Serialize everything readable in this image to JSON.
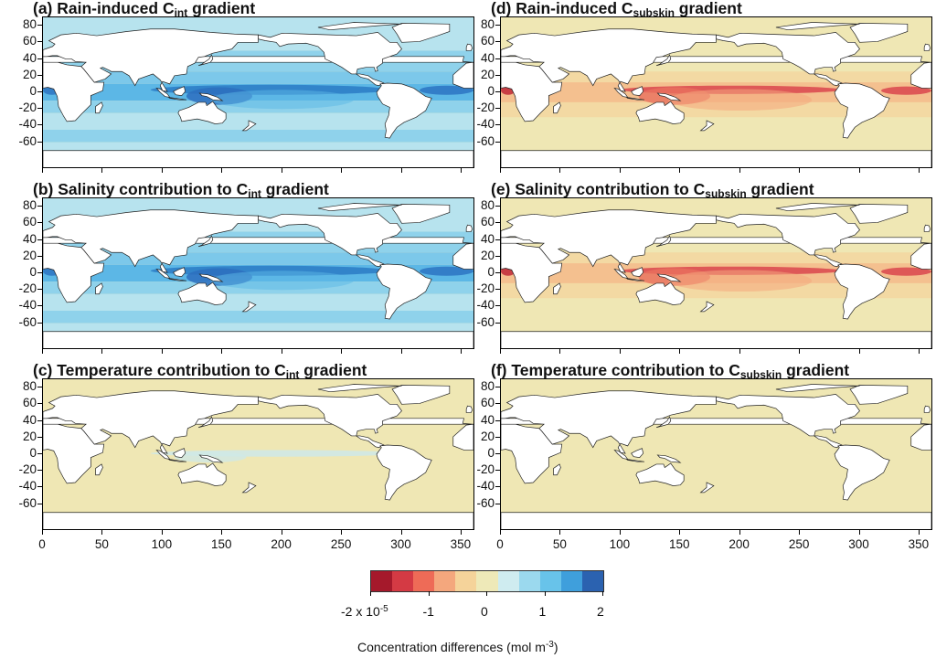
{
  "panels": [
    {
      "letter": "(a)",
      "prefix": "Rain-induced C",
      "sub": "int",
      "suffix": " gradient",
      "style": "blue"
    },
    {
      "letter": "(b)",
      "prefix": "Salinity contribution to C",
      "sub": "int",
      "suffix": " gradient",
      "style": "blue"
    },
    {
      "letter": "(c)",
      "prefix": "Temperature contribution to C",
      "sub": "int",
      "suffix": " gradient",
      "style": "flat-light"
    },
    {
      "letter": "(d)",
      "prefix": "Rain-induced C",
      "sub": "subskin",
      "suffix": " gradient",
      "style": "red"
    },
    {
      "letter": "(e)",
      "prefix": "Salinity contribution to C",
      "sub": "subskin",
      "suffix": " gradient",
      "style": "red"
    },
    {
      "letter": "(f)",
      "prefix": "Temperature contribution to C",
      "sub": "subskin",
      "suffix": " gradient",
      "style": "flat"
    }
  ],
  "y_ticks": [
    "80",
    "60",
    "40",
    "20",
    "0",
    "-20",
    "-40",
    "-60"
  ],
  "x_ticks": [
    "0",
    "50",
    "100",
    "150",
    "200",
    "250",
    "300",
    "350"
  ],
  "colorbar": {
    "colors": [
      "#a5192b",
      "#d43a44",
      "#ee6b57",
      "#f4a77d",
      "#f5d39a",
      "#eee9b8",
      "#cfecf0",
      "#9bd9ee",
      "#68c3ea",
      "#3f9fdc",
      "#2b62b0"
    ],
    "tick_labels": [
      "-2 x 10",
      "-1",
      "0",
      "1",
      "2"
    ],
    "tick_values": [
      -2,
      -1,
      0,
      1,
      2
    ],
    "exponent": "-5",
    "title": "Concentration differences (mol m",
    "title_exp": "-3",
    "title_close": ")"
  }
}
